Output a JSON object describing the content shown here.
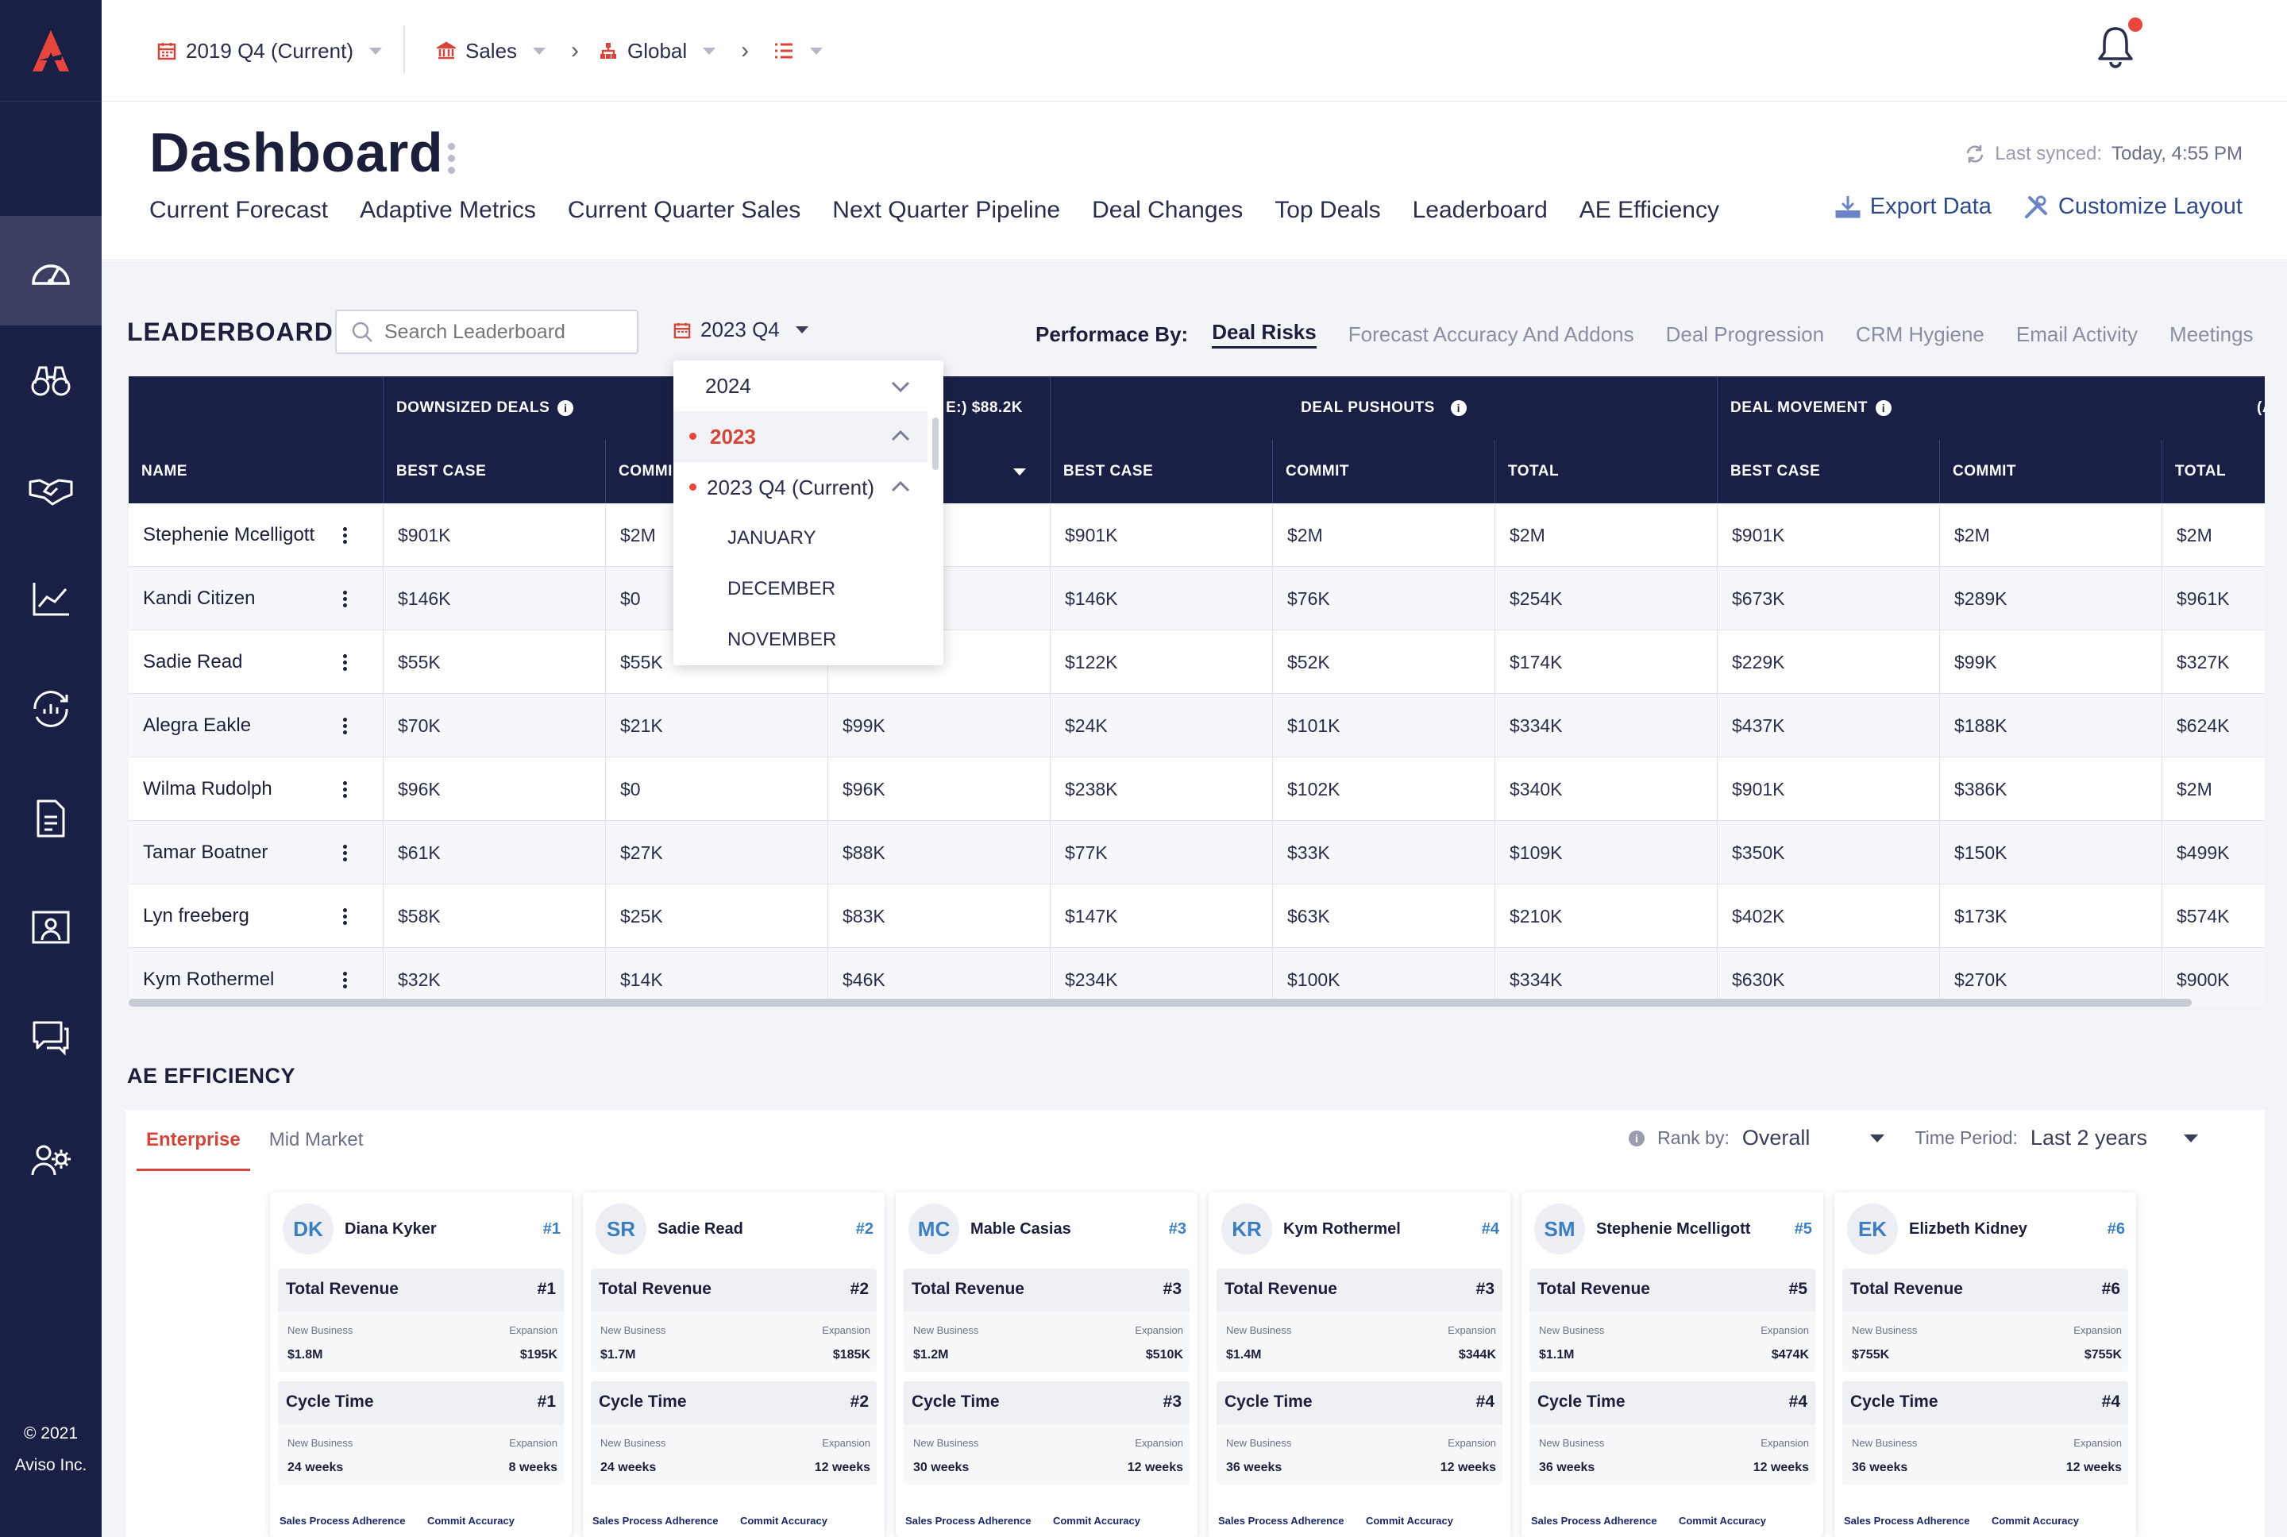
{
  "colors": {
    "sidebar": "#1a1f45",
    "accent": "#d6453a",
    "link": "#2f4a8a",
    "table_header": "#1a1f45"
  },
  "sidebar": {
    "logo_icon": "aviso-logo-icon",
    "items": [
      {
        "icon": "dashboard-gauge-icon",
        "active": true
      },
      {
        "icon": "binoculars-icon"
      },
      {
        "icon": "handshake-icon"
      },
      {
        "icon": "line-chart-icon"
      },
      {
        "icon": "cycle-analytics-icon"
      },
      {
        "icon": "document-icon"
      },
      {
        "icon": "presentation-icon"
      },
      {
        "icon": "chat-icon"
      },
      {
        "icon": "users-settings-icon"
      }
    ],
    "copyright_line1": "© 2021",
    "copyright_line2": "Aviso Inc."
  },
  "topbar": {
    "period": "2019 Q4 (Current)",
    "team": "Sales",
    "region": "Global"
  },
  "header": {
    "title": "Dashboard",
    "sync_label": "Last synced:",
    "sync_value": "Today, 4:55 PM",
    "tabs": [
      "Current Forecast",
      "Adaptive Metrics",
      "Current Quarter Sales",
      "Next Quarter Pipeline",
      "Deal Changes",
      "Top Deals",
      "Leaderboard",
      "AE Efficiency"
    ],
    "export_label": "Export Data",
    "customize_label": "Customize Layout"
  },
  "leaderboard": {
    "title": "LEADERBOARD",
    "search_placeholder": "Search Leaderboard",
    "period": "2023 Q4",
    "performance_label": "Performace By:",
    "performance_tabs": [
      "Deal Risks",
      "Forecast Accuracy And Addons",
      "Deal Progression",
      "CRM Hygiene",
      "Email Activity",
      "Meetings"
    ],
    "group_headers": {
      "downsized": "DOWNSIZED DEALS",
      "partial": "E:) $88.2K",
      "pushouts": "DEAL PUSHOUTS",
      "movement": "DEAL MOVEMENT",
      "avg": "(AVERA"
    },
    "columns": {
      "name": "NAME",
      "best_case": "BEST CASE",
      "commit_cut": "COMMI",
      "commit": "COMMIT",
      "total": "TOTAL"
    },
    "rows": [
      {
        "name": "Stephenie Mcelligott",
        "v": [
          "$901K",
          "$2M",
          "",
          "$901K",
          "$2M",
          "$2M",
          "$901K",
          "$2M",
          "$2M"
        ]
      },
      {
        "name": "Kandi Citizen",
        "v": [
          "$146K",
          "$0",
          "",
          "$146K",
          "$76K",
          "$254K",
          "$673K",
          "$289K",
          "$961K"
        ]
      },
      {
        "name": "Sadie Read",
        "v": [
          "$55K",
          "$55K",
          "",
          "$122K",
          "$52K",
          "$174K",
          "$229K",
          "$99K",
          "$327K"
        ]
      },
      {
        "name": "Alegra Eakle",
        "v": [
          "$70K",
          "$21K",
          "$99K",
          "$24K",
          "$101K",
          "$334K",
          "$437K",
          "$188K",
          "$624K"
        ]
      },
      {
        "name": "Wilma Rudolph",
        "v": [
          "$96K",
          "$0",
          "$96K",
          "$238K",
          "$102K",
          "$340K",
          "$901K",
          "$386K",
          "$2M"
        ]
      },
      {
        "name": "Tamar Boatner",
        "v": [
          "$61K",
          "$27K",
          "$88K",
          "$77K",
          "$33K",
          "$109K",
          "$350K",
          "$150K",
          "$499K"
        ]
      },
      {
        "name": "Lyn freeberg",
        "v": [
          "$58K",
          "$25K",
          "$83K",
          "$147K",
          "$63K",
          "$210K",
          "$402K",
          "$173K",
          "$574K"
        ]
      },
      {
        "name": "Kym Rothermel",
        "v": [
          "$32K",
          "$14K",
          "$46K",
          "$234K",
          "$100K",
          "$334K",
          "$630K",
          "$270K",
          "$900K"
        ]
      }
    ],
    "dropdown": {
      "year_2024": "2024",
      "year_2023": "2023",
      "quarter": "2023 Q4 (Current)",
      "months": [
        "JANUARY",
        "DECEMBER",
        "NOVEMBER"
      ]
    }
  },
  "ae": {
    "title": "AE EFFICIENCY",
    "tabs": [
      "Enterprise",
      "Mid Market"
    ],
    "rank_label": "Rank by:",
    "rank_value": "Overall",
    "period_label": "Time Period:",
    "period_value": "Last 2 years",
    "metric1": "Total Revenue",
    "metric2": "Cycle Time",
    "sub_left": "New Business",
    "sub_right": "Expansion",
    "foot_left": "Sales Process Adherence",
    "foot_right": "Commit Accuracy",
    "cards": [
      {
        "initials": "DK",
        "name": "Diana Kyker",
        "rank": "#1",
        "rev_rank": "#1",
        "rev_new": "$1.8M",
        "rev_exp": "$195K",
        "cyc_rank": "#1",
        "cyc_new": "24 weeks",
        "cyc_exp": "8 weeks"
      },
      {
        "initials": "SR",
        "name": "Sadie Read",
        "rank": "#2",
        "rev_rank": "#2",
        "rev_new": "$1.7M",
        "rev_exp": "$185K",
        "cyc_rank": "#2",
        "cyc_new": "24 weeks",
        "cyc_exp": "12 weeks"
      },
      {
        "initials": "MC",
        "name": "Mable Casias",
        "rank": "#3",
        "rev_rank": "#3",
        "rev_new": "$1.2M",
        "rev_exp": "$510K",
        "cyc_rank": "#3",
        "cyc_new": "30 weeks",
        "cyc_exp": "12 weeks"
      },
      {
        "initials": "KR",
        "name": "Kym Rothermel",
        "rank": "#4",
        "rev_rank": "#3",
        "rev_new": "$1.4M",
        "rev_exp": "$344K",
        "cyc_rank": "#4",
        "cyc_new": "36 weeks",
        "cyc_exp": "12 weeks"
      },
      {
        "initials": "SM",
        "name": "Stephenie Mcelligott",
        "rank": "#5",
        "rev_rank": "#5",
        "rev_new": "$1.1M",
        "rev_exp": "$474K",
        "cyc_rank": "#4",
        "cyc_new": "36 weeks",
        "cyc_exp": "12 weeks"
      },
      {
        "initials": "EK",
        "name": "Elizbeth Kidney",
        "rank": "#6",
        "rev_rank": "#6",
        "rev_new": "$755K",
        "rev_exp": "$755K",
        "cyc_rank": "#4",
        "cyc_new": "36 weeks",
        "cyc_exp": "12 weeks"
      }
    ]
  }
}
